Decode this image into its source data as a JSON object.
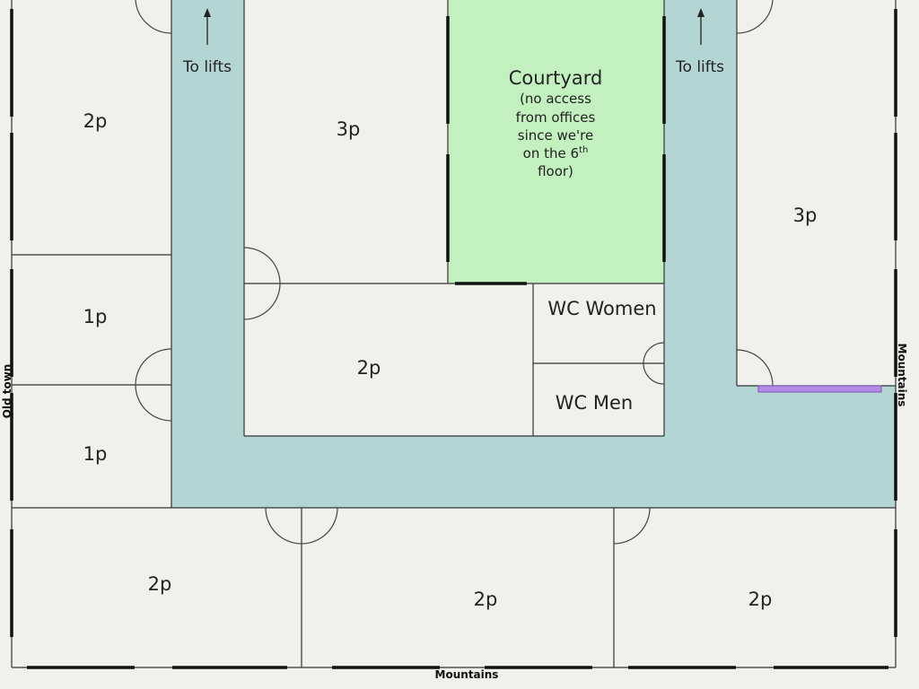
{
  "colors": {
    "background": "#f0f0ec",
    "corridor": "#b3d5d4",
    "courtyard": "#c2f0bf",
    "purple_bar": "#b48ce8"
  },
  "rooms": {
    "left_top": "2p",
    "left_mid_upper": "1p",
    "left_mid_lower": "1p",
    "center_top": "3p",
    "center_middle": "2p",
    "right_top": "3p",
    "bottom_left": "2p",
    "bottom_middle": "2p",
    "bottom_right": "2p",
    "wc_women": "WC Women",
    "wc_men": "WC Men"
  },
  "courtyard": {
    "title": "Courtyard",
    "note_line1": "(no access",
    "note_line2": "from offices",
    "note_line3": "since we're",
    "note_line4_prefix": "on the 6",
    "note_line4_sup": "th",
    "note_line5": "floor)"
  },
  "lifts": {
    "left": "To lifts",
    "right": "To lifts"
  },
  "edges": {
    "left": "Old town",
    "right": "Mountains",
    "bottom": "Mountains"
  }
}
